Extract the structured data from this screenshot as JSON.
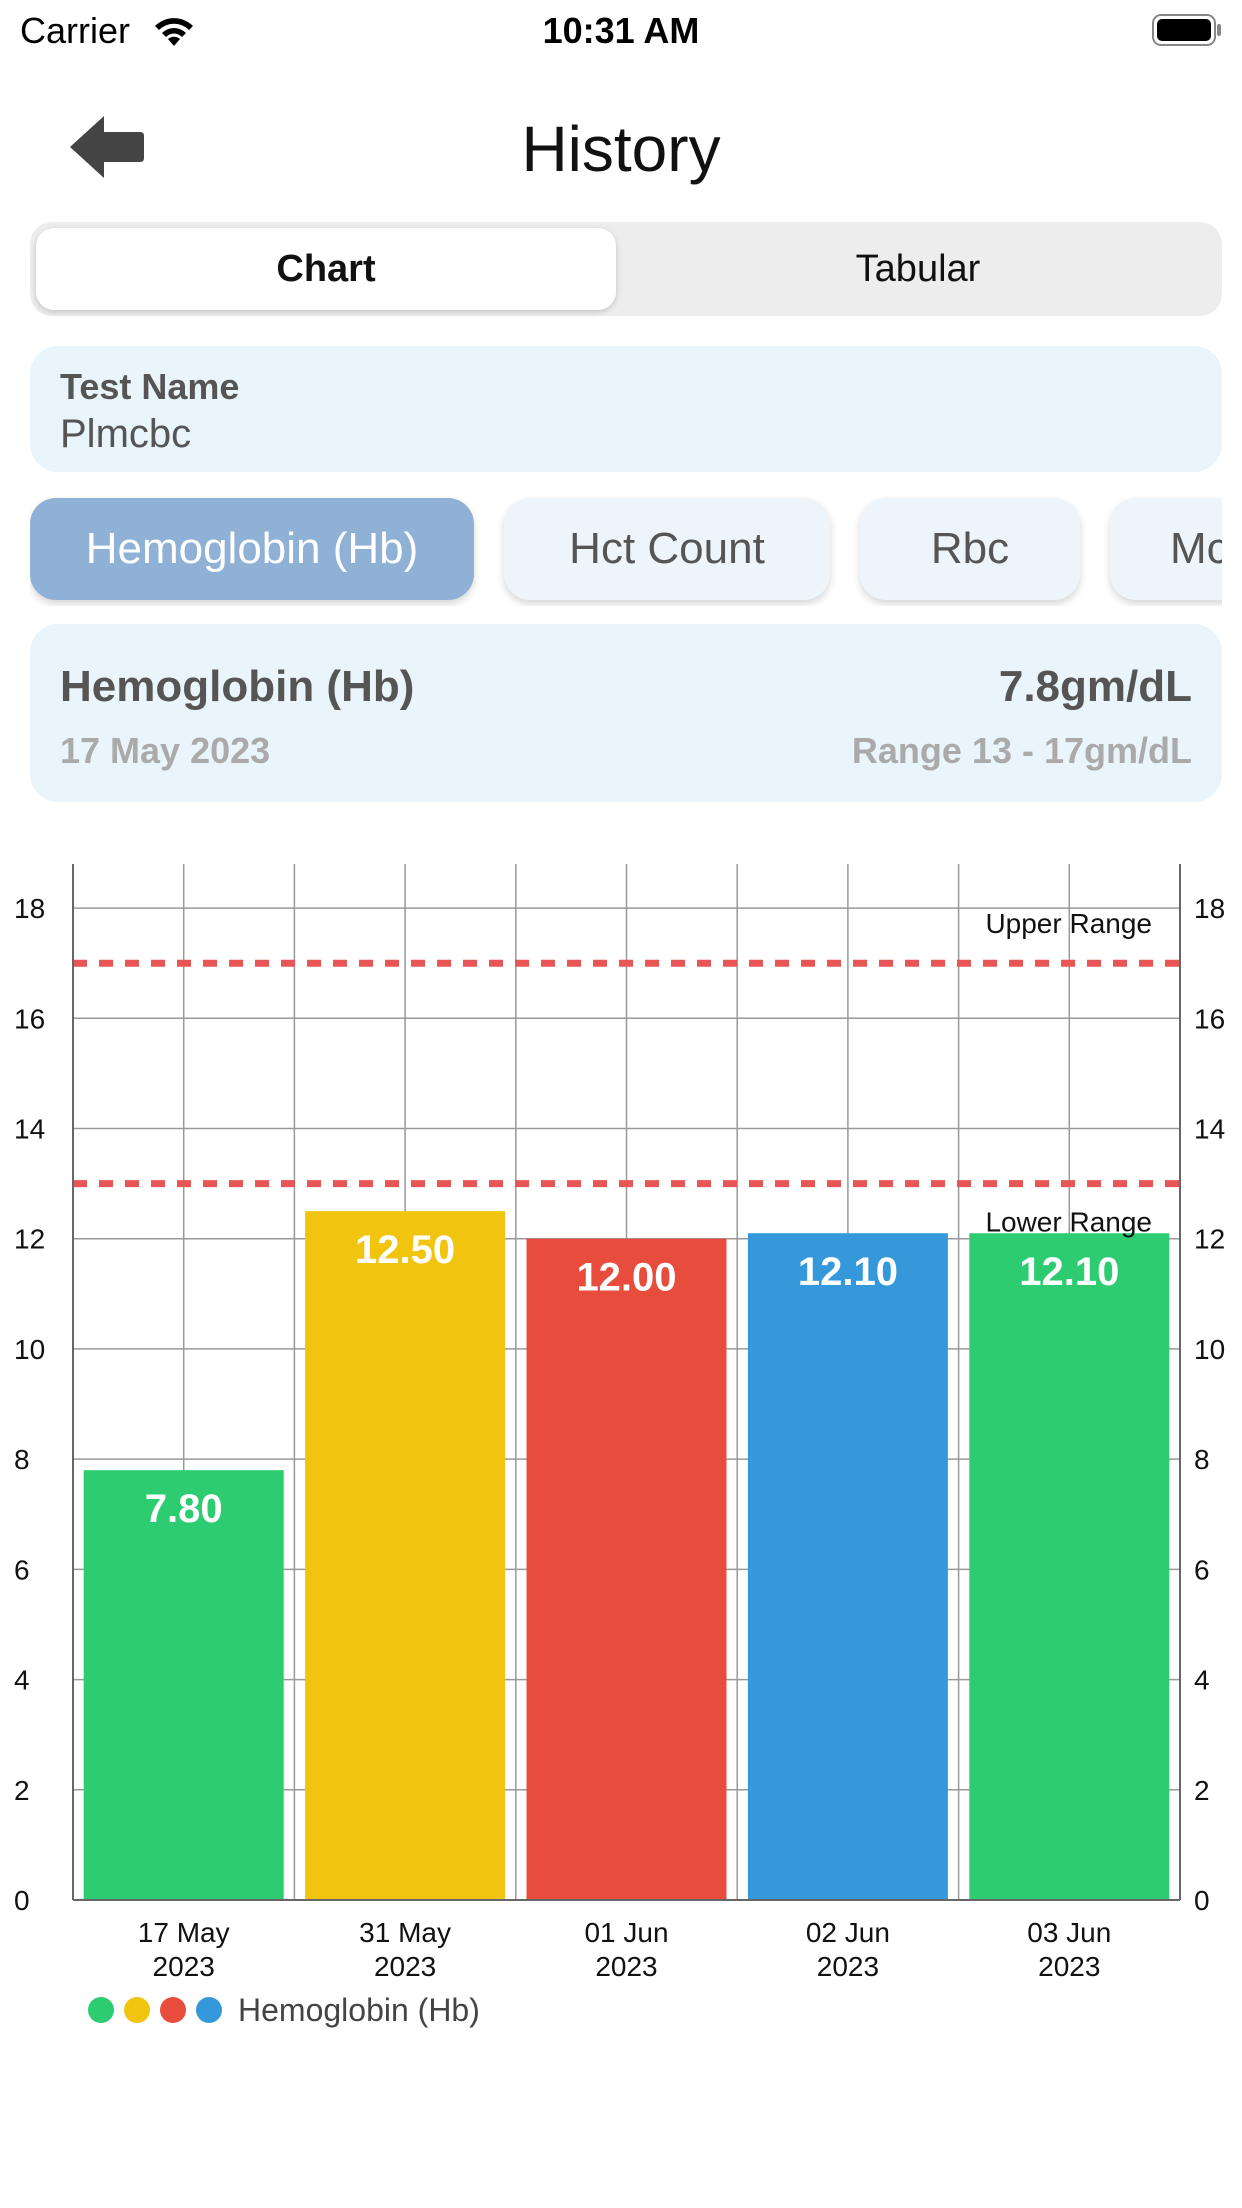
{
  "status_bar": {
    "carrier": "Carrier",
    "time": "10:31 AM"
  },
  "header": {
    "title": "History",
    "back_icon": "back-arrow-icon"
  },
  "segments": [
    {
      "label": "Chart",
      "selected": true
    },
    {
      "label": "Tabular",
      "selected": false
    }
  ],
  "test": {
    "label": "Test Name",
    "value": "Plmcbc"
  },
  "parameter_tabs": [
    {
      "label": "Hemoglobin (Hb)",
      "active": true
    },
    {
      "label": "Hct Count",
      "active": false
    },
    {
      "label": "Rbc",
      "active": false
    },
    {
      "label": "Mcv",
      "active": false
    }
  ],
  "selected_result": {
    "name": "Hemoglobin (Hb)",
    "value": "7.8gm/dL",
    "date": "17 May 2023",
    "range": "Range 13 - 17gm/dL"
  },
  "chart_data": {
    "type": "bar",
    "categories": [
      [
        "17 May",
        "2023"
      ],
      [
        "31 May",
        "2023"
      ],
      [
        "01 Jun",
        "2023"
      ],
      [
        "02 Jun",
        "2023"
      ],
      [
        "03 Jun",
        "2023"
      ]
    ],
    "series": [
      {
        "name": "Hemoglobin (Hb)",
        "values": [
          7.8,
          12.5,
          12.0,
          12.1,
          12.1
        ],
        "labels": [
          "7.80",
          "12.50",
          "12.00",
          "12.10",
          "12.10"
        ]
      }
    ],
    "bar_colors": [
      "#2ecc71",
      "#f1c40f",
      "#e74c3c",
      "#3498db",
      "#2ecc71"
    ],
    "ylim": [
      0,
      18.8
    ],
    "yticks": [
      0,
      2,
      4,
      6,
      8,
      10,
      12,
      14,
      16,
      18
    ],
    "limit_lines": [
      {
        "label": "Upper Range",
        "value": 17
      },
      {
        "label": "Lower Range",
        "value": 13
      }
    ],
    "limit_line_color": "#e85555",
    "grid": true,
    "legend": {
      "placement": "bottom-left",
      "colors": [
        "#2ecc71",
        "#f1c40f",
        "#e74c3c",
        "#3498db"
      ],
      "label": "Hemoglobin (Hb)"
    }
  }
}
